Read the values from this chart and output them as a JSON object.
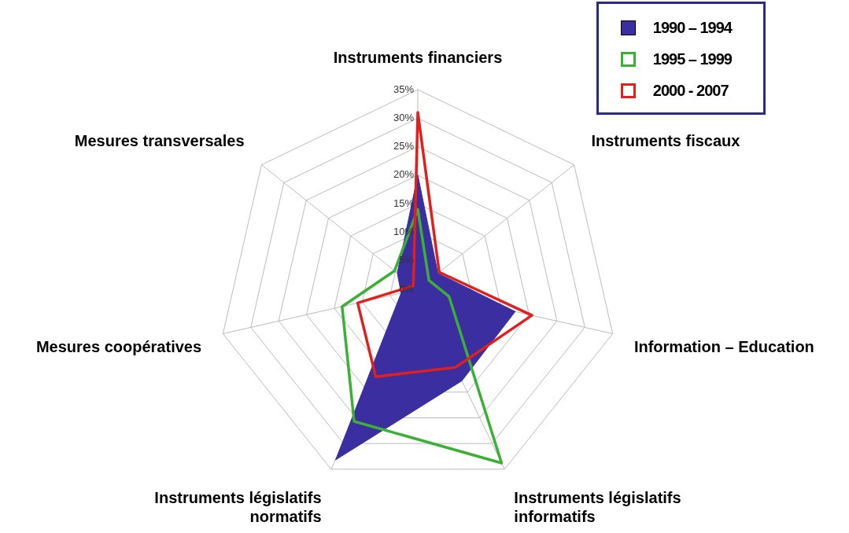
{
  "chart_data": {
    "type": "radar",
    "categories": [
      "Instruments financiers",
      "Instruments fiscaux",
      "Information – Education",
      "Instruments législatifs informatifs",
      "Instruments législatifs normatifs",
      "Mesures coopératives",
      "Mesures transversales"
    ],
    "series": [
      {
        "name": "1990 – 1994",
        "color": "#3a2ea0",
        "type": "area",
        "values": [
          20,
          4.5,
          17.5,
          17.8,
          33.2,
          3,
          4.6
        ]
      },
      {
        "name": "1995 – 1999",
        "color": "#3cb034",
        "values": [
          14,
          2.5,
          5.6,
          33.8,
          25.7,
          13.6,
          5.2
        ]
      },
      {
        "name": "2000 - 2007",
        "color": "#e0201c",
        "values": [
          31,
          4.8,
          20.5,
          15.2,
          17,
          10.8,
          1
        ]
      }
    ],
    "ylim": [
      0,
      35
    ],
    "yticks": [
      {
        "value": 0,
        "label": "0%"
      },
      {
        "value": 5,
        "label": "5%"
      },
      {
        "value": 10,
        "label": "10%"
      },
      {
        "value": 15,
        "label": "15%"
      },
      {
        "value": 20,
        "label": "20%"
      },
      {
        "value": 25,
        "label": "25%"
      },
      {
        "value": 30,
        "label": "30%"
      },
      {
        "value": 35,
        "label": "35%"
      }
    ],
    "grid": true,
    "legend": "top right"
  }
}
